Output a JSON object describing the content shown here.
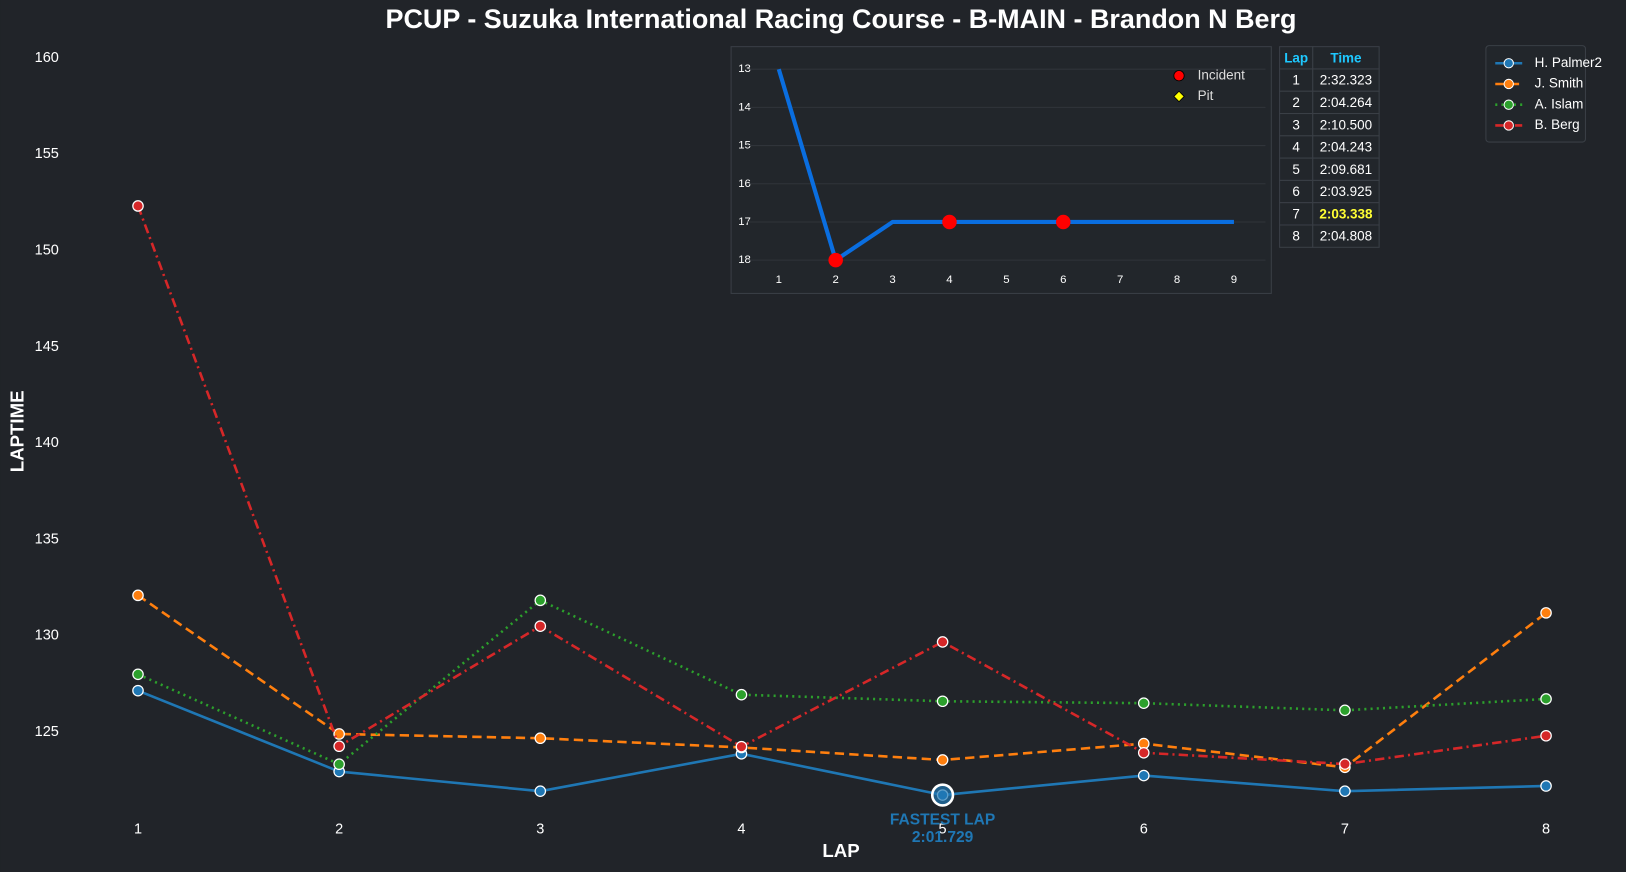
{
  "chart_data": [
    {
      "type": "line",
      "title": "PCUP - Suzuka International Racing Course - B-MAIN - Brandon N Berg",
      "x_label": "LAP",
      "y_label": "LAPTIME",
      "x": [
        1,
        2,
        3,
        4,
        5,
        6,
        7,
        8
      ],
      "xlim": [
        0.6,
        8.4
      ],
      "xticks": [
        1,
        2,
        3,
        4,
        5,
        6,
        7,
        8
      ],
      "ylim": [
        120.5,
        161
      ],
      "yticks": [
        125,
        130,
        135,
        140,
        145,
        150,
        155,
        160
      ],
      "legend": "upper right",
      "series": [
        {
          "name": "H. Palmer2",
          "color": "#1f77b4",
          "dash": "solid",
          "values": [
            127.15,
            122.95,
            121.93,
            123.87,
            121.729,
            122.74,
            121.93,
            122.2
          ]
        },
        {
          "name": "J. Smith",
          "color": "#ff7f0e",
          "dash": "dashed",
          "values": [
            132.1,
            124.9,
            124.68,
            124.2,
            123.55,
            124.4,
            123.17,
            131.19
          ]
        },
        {
          "name": "A. Islam",
          "color": "#2ca02c",
          "dash": "dotted",
          "values": [
            128.0,
            123.33,
            131.84,
            126.94,
            126.6,
            126.5,
            126.13,
            126.72
          ]
        },
        {
          "name": "B. Berg",
          "color": "#d62728",
          "dash": "dashdot",
          "values": [
            152.323,
            124.264,
            130.5,
            124.243,
            129.681,
            123.925,
            123.338,
            124.808
          ]
        }
      ],
      "annotation": {
        "text": "FASTEST LAP",
        "time": "2:01.729",
        "color": "#1f77b4"
      }
    },
    {
      "type": "line",
      "x": [
        1,
        2,
        3,
        4,
        5,
        6,
        7,
        8,
        9
      ],
      "values": [
        13,
        18,
        17,
        17,
        17,
        17,
        17,
        17,
        17
      ],
      "color": "#0a6ee0",
      "xlim": [
        0.3,
        9.7
      ],
      "xticks": [
        1,
        2,
        3,
        4,
        5,
        6,
        7,
        8,
        9
      ],
      "ylim": [
        18.6,
        12.6
      ],
      "yticks": [
        13,
        14,
        15,
        16,
        17,
        18
      ],
      "grid": true,
      "markers": [
        {
          "name": "Incident",
          "color": "#ff0000",
          "shape": "circle",
          "x": [
            2,
            4,
            6
          ]
        },
        {
          "name": "Pit",
          "color": "#ffff00",
          "shape": "diamond",
          "x": []
        }
      ]
    }
  ],
  "lap_table": {
    "columns": [
      "Lap",
      "Time"
    ],
    "rows": [
      [
        1,
        "2:32.323"
      ],
      [
        2,
        "2:04.264"
      ],
      [
        3,
        "2:10.500"
      ],
      [
        4,
        "2:04.243"
      ],
      [
        5,
        "2:09.681"
      ],
      [
        6,
        "2:03.925"
      ],
      [
        7,
        "2:03.338"
      ],
      [
        8,
        "2:04.808"
      ]
    ]
  }
}
